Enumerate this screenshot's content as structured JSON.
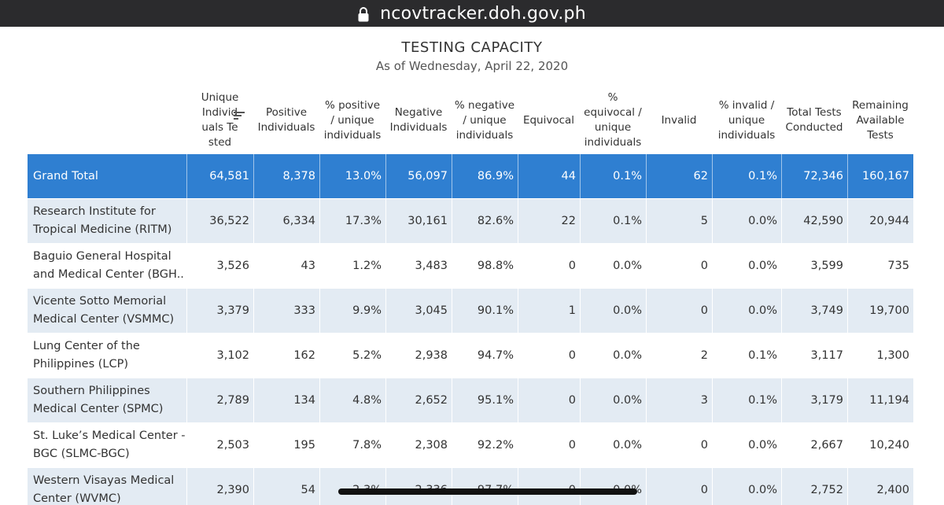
{
  "browser": {
    "url": "ncovtracker.doh.gov.ph"
  },
  "report": {
    "title": "TESTING CAPACITY",
    "subtitle": "As of Wednesday, April 22, 2020"
  },
  "columns": [
    [
      "Unique",
      "Individ",
      "uals Te",
      "sted"
    ],
    [
      "Positive",
      "Individuals"
    ],
    [
      "% positive",
      "/ unique",
      "individuals"
    ],
    [
      "Negative",
      "Individuals"
    ],
    [
      "% negative",
      "/ unique",
      "individuals"
    ],
    [
      "Equivocal"
    ],
    [
      "%",
      "equivocal /",
      "unique",
      "individuals"
    ],
    [
      "Invalid"
    ],
    [
      "% invalid /",
      "unique",
      "individuals"
    ],
    [
      "Total Tests",
      "Conducted"
    ],
    [
      "Remaining",
      "Available",
      "Tests"
    ]
  ],
  "grand_total": {
    "label": "Grand Total",
    "values": [
      "64,581",
      "8,378",
      "13.0%",
      "56,097",
      "86.9%",
      "44",
      "0.1%",
      "62",
      "0.1%",
      "72,346",
      "160,167"
    ]
  },
  "rows": [
    {
      "name": [
        "Research Institute for",
        "Tropical Medicine (RITM)"
      ],
      "values": [
        "36,522",
        "6,334",
        "17.3%",
        "30,161",
        "82.6%",
        "22",
        "0.1%",
        "5",
        "0.0%",
        "42,590",
        "20,944"
      ]
    },
    {
      "name": [
        "Baguio General Hospital",
        "and Medical Center (BGH.."
      ],
      "values": [
        "3,526",
        "43",
        "1.2%",
        "3,483",
        "98.8%",
        "0",
        "0.0%",
        "0",
        "0.0%",
        "3,599",
        "735"
      ]
    },
    {
      "name": [
        "Vicente Sotto Memorial",
        "Medical Center (VSMMC)"
      ],
      "values": [
        "3,379",
        "333",
        "9.9%",
        "3,045",
        "90.1%",
        "1",
        "0.0%",
        "0",
        "0.0%",
        "3,749",
        "19,700"
      ]
    },
    {
      "name": [
        "Lung Center of the",
        "Philippines (LCP)"
      ],
      "values": [
        "3,102",
        "162",
        "5.2%",
        "2,938",
        "94.7%",
        "0",
        "0.0%",
        "2",
        "0.1%",
        "3,117",
        "1,300"
      ]
    },
    {
      "name": [
        "Southern Philippines",
        "Medical Center (SPMC)"
      ],
      "values": [
        "2,789",
        "134",
        "4.8%",
        "2,652",
        "95.1%",
        "0",
        "0.0%",
        "3",
        "0.1%",
        "3,179",
        "11,194"
      ]
    },
    {
      "name": [
        "St. Luke’s Medical Center -",
        "BGC (SLMC-BGC)"
      ],
      "values": [
        "2,503",
        "195",
        "7.8%",
        "2,308",
        "92.2%",
        "0",
        "0.0%",
        "0",
        "0.0%",
        "2,667",
        "10,240"
      ]
    },
    {
      "name": [
        "Western Visayas Medical",
        "Center (WVMC)"
      ],
      "values": [
        "2,390",
        "54",
        "2.3%",
        "2,336",
        "97.7%",
        "0",
        "0.0%",
        "0",
        "0.0%",
        "2,752",
        "2,400"
      ]
    }
  ],
  "colors": {
    "grand_total_bg": "#2f7fd1",
    "alt_row_bg": "#e3ebf3",
    "urlbar_bg": "#2b2b2d"
  },
  "icons": {
    "url_lock": "lock-icon",
    "sort": "sort-descending-icon"
  }
}
